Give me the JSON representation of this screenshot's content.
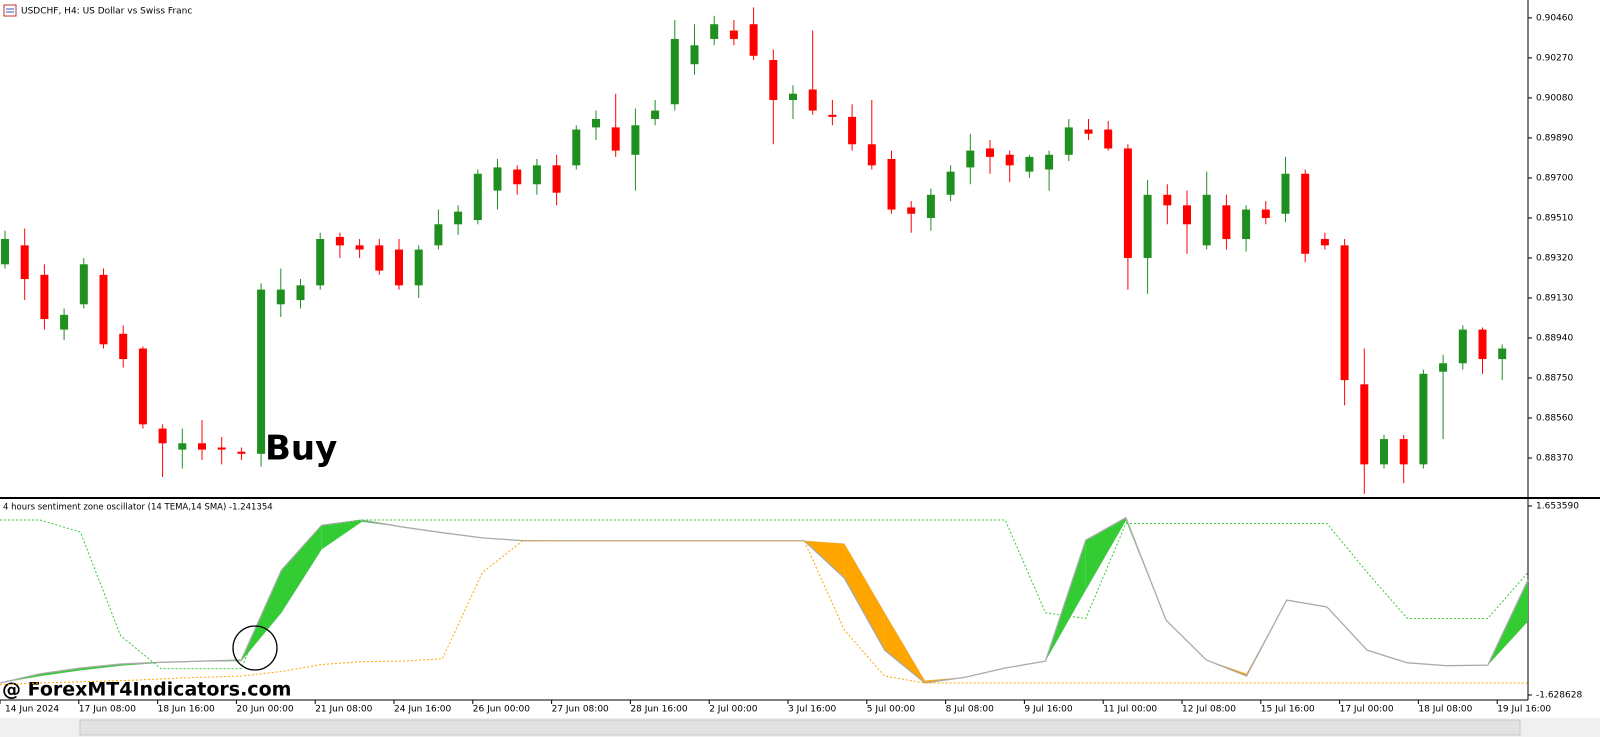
{
  "chart_data": [
    {
      "type": "candlestick",
      "title": "USDCHF, H4:  US Dollar vs Swiss Franc",
      "annotation": "Buy",
      "up_color": "#1f8f1f",
      "down_color": "#ff0000",
      "categories": [
        "14 Jun 2024",
        null,
        null,
        null,
        "17 Jun 08:00",
        null,
        null,
        null,
        "18 Jun 16:00",
        null,
        null,
        null,
        "20 Jun 00:00",
        null,
        null,
        null,
        "21 Jun 08:00",
        null,
        null,
        null,
        "24 Jun 16:00",
        null,
        null,
        null,
        "26 Jun 00:00",
        null,
        null,
        null,
        "27 Jun 08:00",
        null,
        null,
        null,
        "28 Jun 16:00",
        null,
        null,
        null,
        "2 Jul 00:00",
        null,
        null,
        null,
        "3 Jul 16:00",
        null,
        null,
        null,
        "5 Jul 00:00",
        null,
        null,
        null,
        "8 Jul 08:00",
        null,
        null,
        null,
        "9 Jul 16:00",
        null,
        null,
        null,
        "11 Jul 00:00",
        null,
        null,
        null,
        "12 Jul 08:00",
        null,
        null,
        null,
        "15 Jul 16:00",
        null,
        null,
        null,
        "17 Jul 00:00",
        null,
        null,
        null,
        "18 Jul 08:00",
        null,
        null,
        null,
        "19 Jul 16:00"
      ],
      "open": [
        0.8929,
        0.8938,
        0.8924,
        0.8898,
        0.891,
        0.8924,
        0.8896,
        0.8889,
        0.8851,
        0.8841,
        0.8844,
        0.8842,
        0.884,
        0.8839,
        0.891,
        0.8912,
        0.8919,
        0.8942,
        0.8938,
        0.8938,
        0.8936,
        0.8919,
        0.8938,
        0.8948,
        0.895,
        0.8964,
        0.8974,
        0.8967,
        0.8976,
        0.8976,
        0.8994,
        0.8994,
        0.8981,
        0.8998,
        0.9005,
        0.9024,
        0.9036,
        0.904,
        0.9043,
        0.9026,
        0.9007,
        0.9012,
        0.9,
        0.8999,
        0.8986,
        0.8979,
        0.8956,
        0.8951,
        0.8962,
        0.8975,
        0.8984,
        0.8981,
        0.8973,
        0.8974,
        0.8981,
        0.8993,
        0.8993,
        0.8984,
        0.8932,
        0.8962,
        0.8957,
        0.8938,
        0.8957,
        0.8941,
        0.8955,
        0.8953,
        0.8972,
        0.8941,
        0.8938,
        0.8872,
        0.8834,
        0.8846,
        0.8834,
        0.8878,
        0.8882,
        0.8898,
        0.8884
      ],
      "high": [
        0.8945,
        0.8946,
        0.8929,
        0.8908,
        0.8932,
        0.8927,
        0.89,
        0.889,
        0.8853,
        0.8851,
        0.8855,
        0.8847,
        0.8842,
        0.892,
        0.8927,
        0.8922,
        0.8944,
        0.8944,
        0.8941,
        0.8941,
        0.8941,
        0.8938,
        0.8955,
        0.8957,
        0.8974,
        0.8979,
        0.8976,
        0.8979,
        0.8981,
        0.8995,
        0.9002,
        0.901,
        0.9003,
        0.9007,
        0.9045,
        0.9043,
        0.9047,
        0.9045,
        0.9051,
        0.9031,
        0.9014,
        0.904,
        0.9007,
        0.9005,
        0.9007,
        0.8983,
        0.8959,
        0.8965,
        0.8976,
        0.8991,
        0.8988,
        0.8983,
        0.8981,
        0.8983,
        0.8998,
        0.8998,
        0.8997,
        0.8986,
        0.8969,
        0.8967,
        0.8964,
        0.8973,
        0.8962,
        0.8957,
        0.8959,
        0.898,
        0.8974,
        0.8944,
        0.8941,
        0.8889,
        0.8848,
        0.8848,
        0.8879,
        0.8886,
        0.89,
        0.8899,
        0.8891
      ],
      "low": [
        0.8927,
        0.8912,
        0.8898,
        0.8893,
        0.8908,
        0.8889,
        0.888,
        0.8851,
        0.8828,
        0.8832,
        0.8836,
        0.8834,
        0.8836,
        0.8833,
        0.8904,
        0.8908,
        0.8917,
        0.8932,
        0.8932,
        0.8924,
        0.8917,
        0.8913,
        0.8936,
        0.8943,
        0.8948,
        0.8955,
        0.8962,
        0.8962,
        0.8957,
        0.8974,
        0.8988,
        0.898,
        0.8964,
        0.8995,
        0.9002,
        0.9019,
        0.9033,
        0.9033,
        0.9026,
        0.8986,
        0.8998,
        0.9,
        0.8995,
        0.8983,
        0.8974,
        0.8953,
        0.8944,
        0.8945,
        0.8959,
        0.8967,
        0.8972,
        0.8968,
        0.897,
        0.8964,
        0.8978,
        0.8988,
        0.8983,
        0.8917,
        0.8915,
        0.8948,
        0.8934,
        0.8936,
        0.8936,
        0.8935,
        0.8948,
        0.8949,
        0.893,
        0.8936,
        0.8862,
        0.882,
        0.8832,
        0.8825,
        0.8832,
        0.8846,
        0.8879,
        0.8877,
        0.8874
      ],
      "close": [
        0.8941,
        0.8922,
        0.8903,
        0.8905,
        0.8929,
        0.8891,
        0.8884,
        0.8853,
        0.8844,
        0.8844,
        0.8841,
        0.8841,
        0.8839,
        0.8917,
        0.8917,
        0.8919,
        0.8941,
        0.8938,
        0.8936,
        0.8926,
        0.8919,
        0.8936,
        0.8948,
        0.8954,
        0.8972,
        0.8975,
        0.8967,
        0.8976,
        0.8963,
        0.8993,
        0.8998,
        0.8983,
        0.8995,
        0.9002,
        0.9036,
        0.9033,
        0.9043,
        0.9036,
        0.9028,
        0.9007,
        0.901,
        0.9002,
        0.8999,
        0.8986,
        0.8976,
        0.8955,
        0.8953,
        0.8962,
        0.8973,
        0.8983,
        0.898,
        0.8976,
        0.898,
        0.8981,
        0.8994,
        0.8991,
        0.8984,
        0.8932,
        0.8962,
        0.8957,
        0.8948,
        0.8962,
        0.8941,
        0.8955,
        0.8951,
        0.8972,
        0.8934,
        0.8938,
        0.8874,
        0.8834,
        0.8846,
        0.8834,
        0.8877,
        0.8882,
        0.8898,
        0.8884,
        0.8889
      ],
      "ylim": [
        0.88185,
        0.90545
      ],
      "yticks": [
        {
          "value": 0.9046,
          "label": "0.90460"
        },
        {
          "value": 0.9027,
          "label": "0.90270"
        },
        {
          "value": 0.9008,
          "label": "0.90080"
        },
        {
          "value": 0.8989,
          "label": "0.89890"
        },
        {
          "value": 0.897,
          "label": "0.89700"
        },
        {
          "value": 0.8951,
          "label": "0.89510"
        },
        {
          "value": 0.8932,
          "label": "0.89320"
        },
        {
          "value": 0.8913,
          "label": "0.89130"
        },
        {
          "value": 0.8894,
          "label": "0.88940"
        },
        {
          "value": 0.8875,
          "label": "0.88750"
        },
        {
          "value": 0.8856,
          "label": "0.88560"
        },
        {
          "value": 0.8837,
          "label": "0.88370"
        }
      ]
    },
    {
      "type": "oscillator",
      "title": "4 hours sentiment zone oscillator (14 TEMA,14 SMA) -1.241354",
      "annotation": "@ ForexMT4Indicators.com",
      "up_color": "#33cc33",
      "down_color": "#ffa500",
      "ylim": [
        -1.628628,
        1.65359
      ],
      "yticks": [
        {
          "value": 1.65359,
          "label": "1.653590"
        },
        {
          "value": -1.628628,
          "label": "-1.628628"
        }
      ],
      "series": [
        {
          "color": "#aaaaaa",
          "values": [
            -1.42,
            -1.26,
            -1.16,
            -1.09,
            -1.06,
            -1.04,
            -1.02,
            0.54,
            1.32,
            1.41,
            1.29,
            1.19,
            1.1,
            1.05,
            1.05,
            1.05,
            1.05,
            1.05,
            1.05,
            1.05,
            1.05,
            0.4,
            -0.85,
            -1.42,
            -1.32,
            -1.16,
            -1.04,
            1.06,
            1.45,
            -0.33,
            -1.02,
            -1.3,
            0.02,
            -0.1,
            -0.85,
            -1.07,
            -1.12,
            -1.11,
            0.37
          ]
        },
        {
          "color": "#aaaaaa",
          "values": [
            -1.42,
            -1.3,
            -1.2,
            -1.12,
            -1.07,
            -1.05,
            -1.04,
            -0.2,
            0.9,
            1.38,
            1.29,
            1.19,
            1.1,
            1.06,
            1.05,
            1.05,
            1.05,
            1.05,
            1.05,
            1.05,
            1.05,
            1.0,
            -0.2,
            -1.38,
            -1.32,
            -1.16,
            -1.04,
            0.19,
            1.4,
            -0.33,
            -1.02,
            -1.26,
            0.02,
            -0.1,
            -0.85,
            -1.07,
            -1.12,
            -1.11,
            -0.35
          ]
        },
        {
          "color": "#33cc33",
          "style": "dotted",
          "values": [
            1.41,
            1.41,
            1.2,
            -0.6,
            -1.17,
            -1.17,
            -1.17,
            0.5,
            1.3,
            1.41,
            1.41,
            1.41,
            1.41,
            1.41,
            1.41,
            1.41,
            1.41,
            1.41,
            1.41,
            1.41,
            1.41,
            1.41,
            1.41,
            1.41,
            1.41,
            1.41,
            -0.2,
            -0.3,
            1.35,
            1.35,
            1.35,
            1.35,
            1.35,
            1.35,
            0.5,
            -0.3,
            -0.3,
            -0.3,
            0.5
          ]
        },
        {
          "color": "#ffa500",
          "style": "dotted",
          "values": [
            -1.45,
            -1.42,
            -1.4,
            -1.38,
            -1.35,
            -1.32,
            -1.3,
            -1.22,
            -1.1,
            -1.05,
            -1.04,
            -1.0,
            0.5,
            1.05,
            1.05,
            1.05,
            1.05,
            1.05,
            1.05,
            1.05,
            1.05,
            -0.5,
            -1.3,
            -1.42,
            -1.42,
            -1.42,
            -1.42,
            -1.42,
            -1.42,
            -1.42,
            -1.42,
            -1.42,
            -1.42,
            -1.42,
            -1.42,
            -1.42,
            -1.42,
            -1.42,
            -1.42
          ]
        }
      ]
    }
  ]
}
